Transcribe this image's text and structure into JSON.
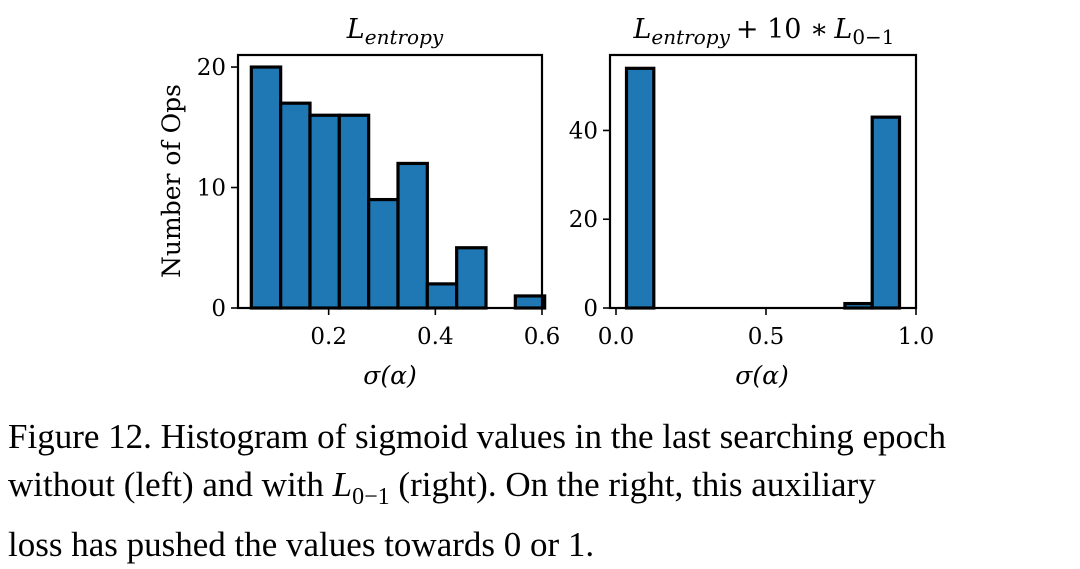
{
  "chart_data": [
    {
      "type": "bar",
      "title": "L_entropy",
      "title_parts": {
        "base": "L",
        "sub": "entropy"
      },
      "xlabel": "σ(α)",
      "ylabel": "Number of Ops",
      "xlim": [
        0.03,
        0.6
      ],
      "ylim": [
        0,
        21
      ],
      "xticks": [
        0.2,
        0.4,
        0.6
      ],
      "xtick_labels": [
        "0.2",
        "0.4",
        "0.6"
      ],
      "yticks": [
        0,
        10,
        20
      ],
      "ytick_labels": [
        "0",
        "10",
        "20"
      ],
      "bin_edges": [
        0.055,
        0.11,
        0.165,
        0.22,
        0.275,
        0.33,
        0.385,
        0.44,
        0.495,
        0.55,
        0.605
      ],
      "values": [
        20,
        17,
        16,
        16,
        9,
        12,
        2,
        5,
        0,
        1
      ],
      "color": "#1f77b4"
    },
    {
      "type": "bar",
      "title": "L_entropy + 10 * L_0-1",
      "title_parts": {
        "base": "L",
        "sub": "entropy",
        "op": "+ 10 ∗",
        "base2": "L",
        "sub2": "0−1"
      },
      "xlabel": "σ(α)",
      "ylabel": "",
      "xlim": [
        -0.02,
        1.0
      ],
      "ylim": [
        0,
        57
      ],
      "xticks": [
        0.0,
        0.5,
        1.0
      ],
      "xtick_labels": [
        "0.0",
        "0.5",
        "1.0"
      ],
      "yticks": [
        0,
        20,
        40
      ],
      "ytick_labels": [
        "0",
        "20",
        "40"
      ],
      "bin_edges": [
        0.035,
        0.126,
        0.217,
        0.308,
        0.399,
        0.49,
        0.581,
        0.672,
        0.763,
        0.854,
        0.945
      ],
      "values": [
        54,
        0,
        0,
        0,
        0,
        0,
        0,
        0,
        1,
        43
      ],
      "color": "#1f77b4"
    }
  ],
  "caption": {
    "line1": "Figure 12. Histogram of sigmoid values in the last searching epoch",
    "line2_a": "without (left) and with ",
    "line2_math_base": "L",
    "line2_math_sub": "0−1",
    "line2_b": " (right).  On the right, this auxiliary",
    "line3": "loss has pushed the values towards 0 or 1."
  }
}
